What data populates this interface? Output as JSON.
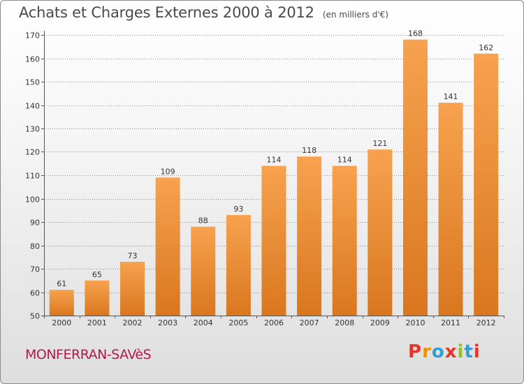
{
  "header": {
    "title": "Achats et Charges Externes 2000 à 2012",
    "unit": "(en milliers d'€)"
  },
  "footer": {
    "town": "MONFERRAN-SAVèS",
    "brand": "Proxiti",
    "brand_colors": [
      "#e8332a",
      "#f39200",
      "#2f9fd8",
      "#e8332a",
      "#93c01f",
      "#2f9fd8",
      "#e8332a"
    ]
  },
  "colors": {
    "bar_top": "#f7a24f",
    "bar_bottom": "#d9771f",
    "grid": "#8e8e8e",
    "axis": "#555555"
  },
  "chart_data": {
    "type": "bar",
    "title": "Achats et Charges Externes 2000 à 2012",
    "subtitle": "(en milliers d'€)",
    "categories": [
      "2000",
      "2001",
      "2002",
      "2003",
      "2004",
      "2005",
      "2006",
      "2007",
      "2008",
      "2009",
      "2010",
      "2011",
      "2012"
    ],
    "values": [
      61,
      65,
      73,
      109,
      88,
      93,
      114,
      118,
      114,
      121,
      168,
      141,
      162
    ],
    "ylim": [
      50,
      170
    ],
    "yticks": [
      50,
      60,
      70,
      80,
      90,
      100,
      110,
      120,
      130,
      140,
      150,
      160,
      170
    ],
    "grid": true,
    "legend": "none"
  }
}
